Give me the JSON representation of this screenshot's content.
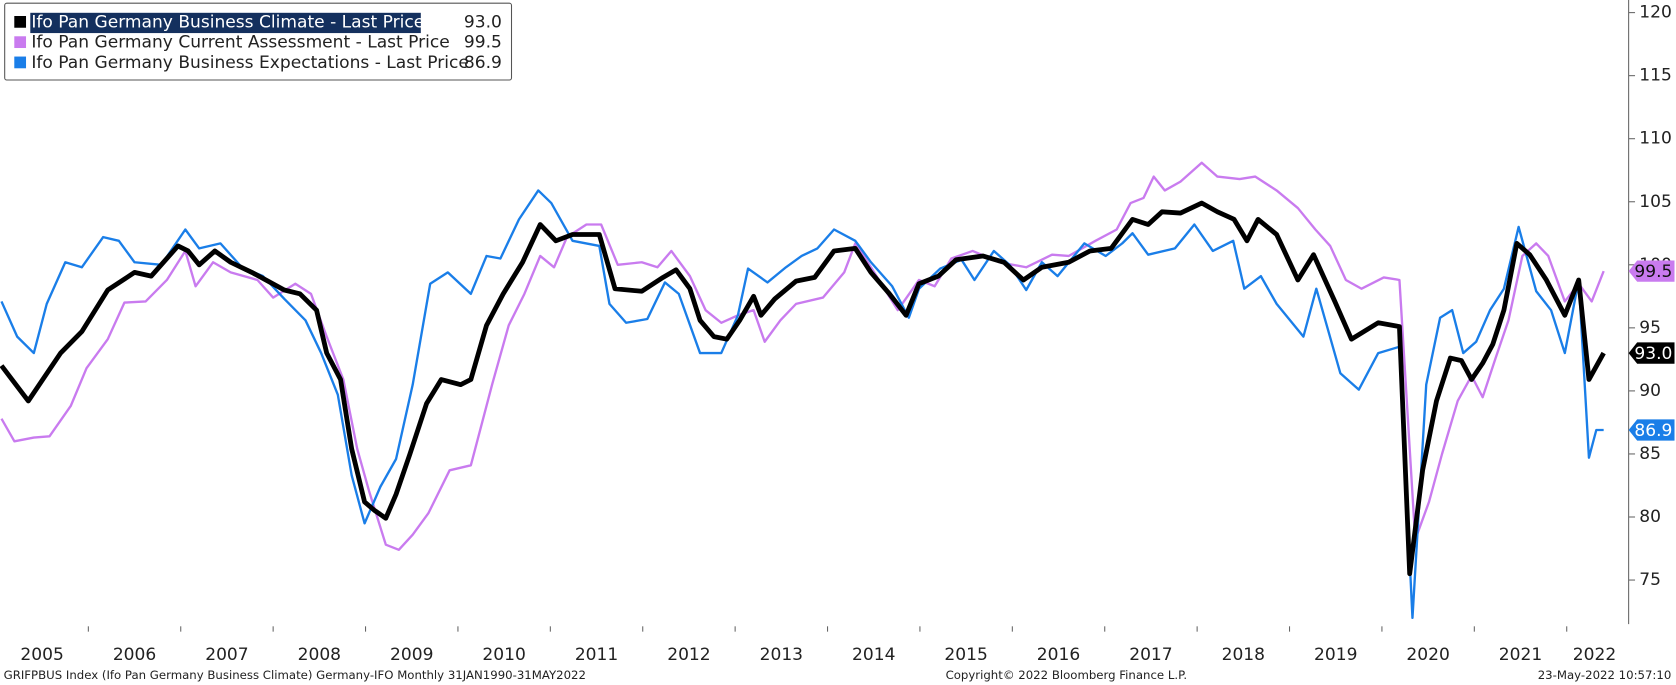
{
  "chart_data": {
    "type": "line",
    "title": null,
    "footer_left": "GRIFPBUS Index (Ifo Pan Germany Business Climate) Germany-IFO  Monthly 31JAN1990-31MAY2022",
    "footer_center": "Copyright© 2022 Bloomberg Finance L.P.",
    "footer_right": "23-May-2022 10:57:10",
    "xlim": [
      2005.06,
      2022.67
    ],
    "xticks": [
      2005,
      2006,
      2007,
      2008,
      2009,
      2010,
      2011,
      2012,
      2013,
      2014,
      2015,
      2016,
      2017,
      2018,
      2019,
      2020,
      2021,
      2022
    ],
    "ylim": [
      71.5,
      121
    ],
    "yticks": [
      75,
      80,
      85,
      90,
      95,
      100,
      105,
      110,
      115,
      120
    ],
    "legend": "top-left",
    "series": [
      {
        "name": "Ifo Pan Germany Business Climate - Last Price",
        "color": "#000000",
        "last_label": "93.0",
        "x": [
          2005.06,
          2005.35,
          2005.7,
          2005.93,
          2006.21,
          2006.5,
          2006.68,
          2006.97,
          2007.08,
          2007.2,
          2007.37,
          2007.54,
          2007.77,
          2008.12,
          2008.29,
          2008.47,
          2008.58,
          2008.73,
          2008.85,
          2008.99,
          2009.1,
          2009.22,
          2009.33,
          2009.48,
          2009.66,
          2009.82,
          2010.03,
          2010.14,
          2010.31,
          2010.49,
          2010.7,
          2010.89,
          2011.06,
          2011.24,
          2011.53,
          2011.7,
          2011.99,
          2012.22,
          2012.36,
          2012.51,
          2012.62,
          2012.77,
          2012.91,
          2013.05,
          2013.2,
          2013.28,
          2013.43,
          2013.66,
          2013.86,
          2014.07,
          2014.3,
          2014.47,
          2014.67,
          2014.85,
          2014.99,
          2015.2,
          2015.39,
          2015.68,
          2015.91,
          2016.12,
          2016.32,
          2016.61,
          2016.84,
          2017.07,
          2017.3,
          2017.47,
          2017.62,
          2017.82,
          2018.05,
          2018.22,
          2018.4,
          2018.54,
          2018.66,
          2018.86,
          2019.09,
          2019.26,
          2019.49,
          2019.67,
          2019.96,
          2020.19,
          2020.3,
          2020.44,
          2020.59,
          2020.74,
          2020.86,
          2020.97,
          2021.09,
          2021.2,
          2021.32,
          2021.46,
          2021.6,
          2021.78,
          2021.98,
          2022.13,
          2022.24,
          2022.4
        ],
        "values": [
          92.0,
          89.2,
          93.0,
          94.7,
          98.0,
          99.4,
          99.1,
          101.5,
          101.1,
          100.0,
          101.1,
          100.2,
          99.4,
          98.0,
          97.7,
          96.4,
          93.0,
          90.9,
          85.4,
          81.2,
          80.5,
          79.9,
          81.8,
          85.0,
          89.0,
          90.9,
          90.5,
          90.9,
          95.2,
          97.7,
          100.2,
          103.2,
          101.9,
          102.4,
          102.4,
          98.1,
          97.9,
          99.0,
          99.6,
          98.1,
          95.6,
          94.3,
          94.1,
          95.6,
          97.5,
          96.0,
          97.3,
          98.7,
          99.0,
          101.1,
          101.3,
          99.4,
          97.7,
          96.0,
          98.5,
          99.1,
          100.4,
          100.7,
          100.2,
          98.8,
          99.8,
          100.2,
          101.1,
          101.3,
          103.6,
          103.2,
          104.2,
          104.1,
          104.9,
          104.2,
          103.6,
          101.9,
          103.6,
          102.4,
          98.8,
          100.8,
          97.1,
          94.1,
          95.4,
          95.1,
          75.5,
          83.7,
          89.2,
          92.6,
          92.4,
          90.9,
          92.2,
          93.7,
          96.4,
          101.7,
          100.8,
          98.8,
          96.0,
          98.8,
          90.9,
          93.0
        ]
      },
      {
        "name": "Ifo Pan Germany Current Assessment - Last Price",
        "color": "#c97bef",
        "last_label": "99.5",
        "x": [
          2005.06,
          2005.2,
          2005.41,
          2005.58,
          2005.81,
          2005.98,
          2006.21,
          2006.39,
          2006.62,
          2006.85,
          2007.05,
          2007.16,
          2007.35,
          2007.54,
          2007.83,
          2008.0,
          2008.24,
          2008.41,
          2008.58,
          2008.76,
          2008.91,
          2009.04,
          2009.22,
          2009.36,
          2009.51,
          2009.68,
          2009.91,
          2010.14,
          2010.37,
          2010.55,
          2010.72,
          2010.89,
          2011.04,
          2011.18,
          2011.39,
          2011.55,
          2011.73,
          2011.99,
          2012.16,
          2012.31,
          2012.51,
          2012.68,
          2012.85,
          2013.03,
          2013.2,
          2013.32,
          2013.49,
          2013.66,
          2013.95,
          2014.18,
          2014.3,
          2014.47,
          2014.76,
          2014.99,
          2015.16,
          2015.34,
          2015.57,
          2015.86,
          2016.15,
          2016.43,
          2016.61,
          2016.9,
          2017.13,
          2017.28,
          2017.42,
          2017.53,
          2017.65,
          2017.82,
          2018.05,
          2018.22,
          2018.46,
          2018.63,
          2018.86,
          2019.09,
          2019.28,
          2019.44,
          2019.61,
          2019.78,
          2020.02,
          2020.19,
          2020.36,
          2020.51,
          2020.65,
          2020.82,
          2020.97,
          2021.09,
          2021.23,
          2021.37,
          2021.52,
          2021.67,
          2021.8,
          2021.98,
          2022.13,
          2022.27,
          2022.4
        ],
        "values": [
          87.8,
          86.0,
          86.3,
          86.4,
          88.8,
          91.8,
          94.1,
          97.0,
          97.1,
          98.8,
          101.1,
          98.3,
          100.2,
          99.4,
          98.8,
          97.4,
          98.5,
          97.7,
          94.3,
          90.9,
          85.4,
          82.0,
          77.8,
          77.4,
          78.6,
          80.3,
          83.7,
          84.1,
          90.5,
          95.2,
          97.7,
          100.7,
          99.8,
          102.2,
          103.2,
          103.2,
          100.0,
          100.2,
          99.8,
          101.1,
          99.1,
          96.4,
          95.4,
          96.0,
          96.4,
          93.9,
          95.6,
          96.9,
          97.4,
          99.4,
          101.7,
          99.8,
          96.4,
          98.8,
          98.3,
          100.5,
          101.1,
          100.2,
          99.8,
          100.8,
          100.7,
          101.9,
          102.8,
          104.9,
          105.3,
          107.0,
          105.9,
          106.6,
          108.1,
          107.0,
          106.8,
          107.0,
          105.9,
          104.5,
          102.8,
          101.5,
          98.8,
          98.1,
          99.0,
          98.8,
          78.2,
          81.2,
          85.0,
          89.2,
          91.2,
          89.5,
          92.6,
          95.6,
          100.7,
          101.7,
          100.7,
          97.1,
          98.5,
          97.1,
          99.5
        ]
      },
      {
        "name": "Ifo Pan Germany Business Expectations - Last Price",
        "color": "#1a7ee8",
        "last_label": "86.9",
        "x": [
          2005.06,
          2005.23,
          2005.41,
          2005.55,
          2005.75,
          2005.93,
          2006.16,
          2006.33,
          2006.5,
          2006.79,
          2007.05,
          2007.2,
          2007.43,
          2007.66,
          2007.89,
          2008.12,
          2008.35,
          2008.52,
          2008.7,
          2008.85,
          2008.99,
          2009.16,
          2009.33,
          2009.51,
          2009.7,
          2009.89,
          2010.14,
          2010.31,
          2010.46,
          2010.66,
          2010.87,
          2011.01,
          2011.24,
          2011.53,
          2011.64,
          2011.82,
          2012.05,
          2012.24,
          2012.39,
          2012.62,
          2012.85,
          2013.03,
          2013.14,
          2013.35,
          2013.55,
          2013.72,
          2013.89,
          2014.07,
          2014.3,
          2014.47,
          2014.7,
          2014.88,
          2014.99,
          2015.22,
          2015.45,
          2015.59,
          2015.8,
          2015.97,
          2016.15,
          2016.32,
          2016.49,
          2016.78,
          2017.01,
          2017.19,
          2017.3,
          2017.47,
          2017.76,
          2017.97,
          2018.17,
          2018.39,
          2018.51,
          2018.69,
          2018.86,
          2019.15,
          2019.29,
          2019.55,
          2019.75,
          2019.96,
          2020.19,
          2020.33,
          2020.48,
          2020.63,
          2020.76,
          2020.88,
          2021.02,
          2021.17,
          2021.32,
          2021.48,
          2021.67,
          2021.83,
          2021.98,
          2022.13,
          2022.24,
          2022.32,
          2022.4
        ],
        "values": [
          97.1,
          94.3,
          93.0,
          96.9,
          100.2,
          99.8,
          102.2,
          101.9,
          100.2,
          100.0,
          102.8,
          101.3,
          101.7,
          99.8,
          99.1,
          97.3,
          95.6,
          93.0,
          89.7,
          83.3,
          79.5,
          82.4,
          84.6,
          90.5,
          98.5,
          99.4,
          97.7,
          100.7,
          100.5,
          103.6,
          105.9,
          104.9,
          101.9,
          101.5,
          96.9,
          95.4,
          95.7,
          98.6,
          97.7,
          93.0,
          93.0,
          96.0,
          99.7,
          98.6,
          99.8,
          100.7,
          101.3,
          102.8,
          101.9,
          100.2,
          98.3,
          95.8,
          98.1,
          99.7,
          100.4,
          98.8,
          101.1,
          100.0,
          98.0,
          100.2,
          99.1,
          101.7,
          100.7,
          101.7,
          102.5,
          100.8,
          101.3,
          103.2,
          101.1,
          101.9,
          98.1,
          99.1,
          96.9,
          94.3,
          98.1,
          91.4,
          90.1,
          93.0,
          93.5,
          72.0,
          90.5,
          95.8,
          96.4,
          93.0,
          93.9,
          96.4,
          98.1,
          103.0,
          97.9,
          96.4,
          93.0,
          98.8,
          84.7,
          86.9,
          86.9
        ]
      }
    ]
  }
}
